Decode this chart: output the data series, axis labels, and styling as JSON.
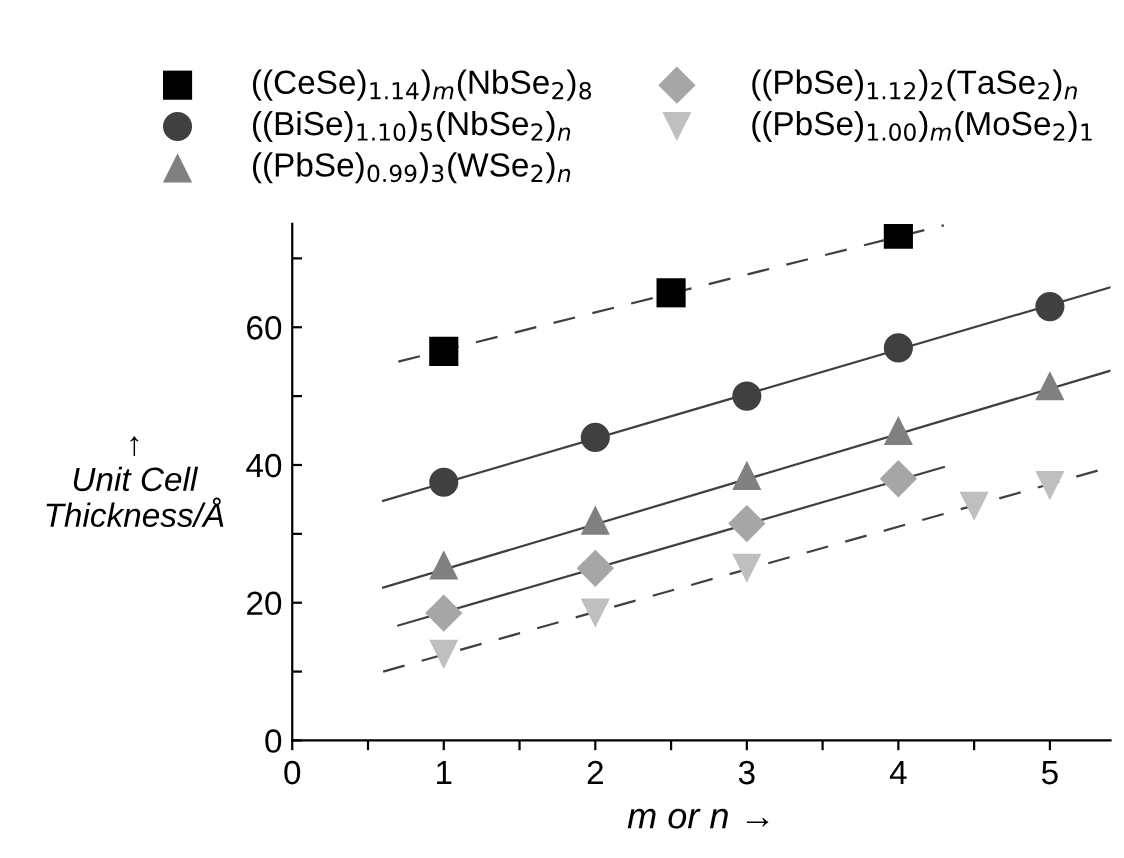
{
  "chart_data": {
    "type": "scatter",
    "xlabel": "m or n →",
    "ylabel": "↑\nUnit Cell\nThickness/Å",
    "xlim": [
      0,
      5.4
    ],
    "xticks": [
      0,
      {
        "value": 0.5,
        "label": null
      },
      1,
      {
        "value": 1.5,
        "label": null
      },
      2,
      {
        "value": 2.5,
        "label": null
      },
      3,
      {
        "value": 3.5,
        "label": null
      },
      4,
      {
        "value": 4.5,
        "label": null
      },
      5
    ],
    "ylim": [
      0,
      75
    ],
    "yticks": [
      0,
      {
        "value": 10,
        "label": null
      },
      20,
      {
        "value": 30,
        "label": null
      },
      40,
      {
        "value": 50,
        "label": null
      },
      60,
      {
        "value": 70,
        "label": null
      }
    ],
    "grid": false,
    "legend": "top",
    "series": [
      {
        "name": "((CeSe)$_{1.14}$)$_{m}$(NbSe$_{2}$)$_{8}$",
        "color": "#000000",
        "marker": "square",
        "x": [
          1,
          2.5,
          4
        ],
        "values": [
          56.5,
          65,
          73.5
        ]
      },
      {
        "name": "((BiSe)$_{1.10}$)$_{5}$(NbSe$_{2}$)$_{n}$",
        "color": "#404040",
        "marker": "circle",
        "x": [
          1,
          2,
          3,
          4,
          5
        ],
        "values": [
          37.5,
          44,
          50,
          57,
          63
        ]
      },
      {
        "name": "((PbSe)$_{0.99}$)$_{3}$(WSe$_{2}$)$_{n}$",
        "color": "#808080",
        "marker": "triangle",
        "x": [
          1,
          2,
          3,
          4,
          5
        ],
        "values": [
          25.5,
          32,
          38.5,
          45,
          51.5
        ]
      },
      {
        "name": "((PbSe)$_{1.12}$)$_{2}$(TaSe$_{2}$)$_{n}$",
        "color": "#a6a6a6",
        "marker": "diamond",
        "x": [
          1,
          2,
          3,
          4
        ],
        "values": [
          18.5,
          25,
          31.5,
          38
        ]
      },
      {
        "name": "((PbSe)$_{1.00}$)$_{m}$(MoSe$_{2}$)$_{1}$",
        "color": "#bfbfbf",
        "marker": "triangle_down",
        "x": [
          1,
          2,
          3,
          4.5,
          5
        ],
        "values": [
          12.5,
          18.5,
          25,
          34,
          37
        ]
      },
      {
        "type": "line",
        "color": "#404040",
        "line_style": "dashed",
        "x": [
          0.7,
          4.3
        ],
        "values": [
          55,
          74.8
        ]
      },
      {
        "type": "line",
        "color": "#404040",
        "line_style": "solid",
        "x": [
          0.6,
          5.4
        ],
        "values": [
          34.8,
          65.8
        ]
      },
      {
        "type": "line",
        "color": "#404040",
        "line_style": "solid",
        "x": [
          0.6,
          5.4
        ],
        "values": [
          22.2,
          53.7
        ]
      },
      {
        "type": "line",
        "color": "#404040",
        "line_style": "solid",
        "x": [
          0.7,
          4.3
        ],
        "values": [
          16.7,
          39.7
        ]
      },
      {
        "type": "line",
        "color": "#404040",
        "line_style": "dashed",
        "x": [
          0.6,
          5.4
        ],
        "values": [
          10,
          39.7
        ]
      }
    ]
  }
}
